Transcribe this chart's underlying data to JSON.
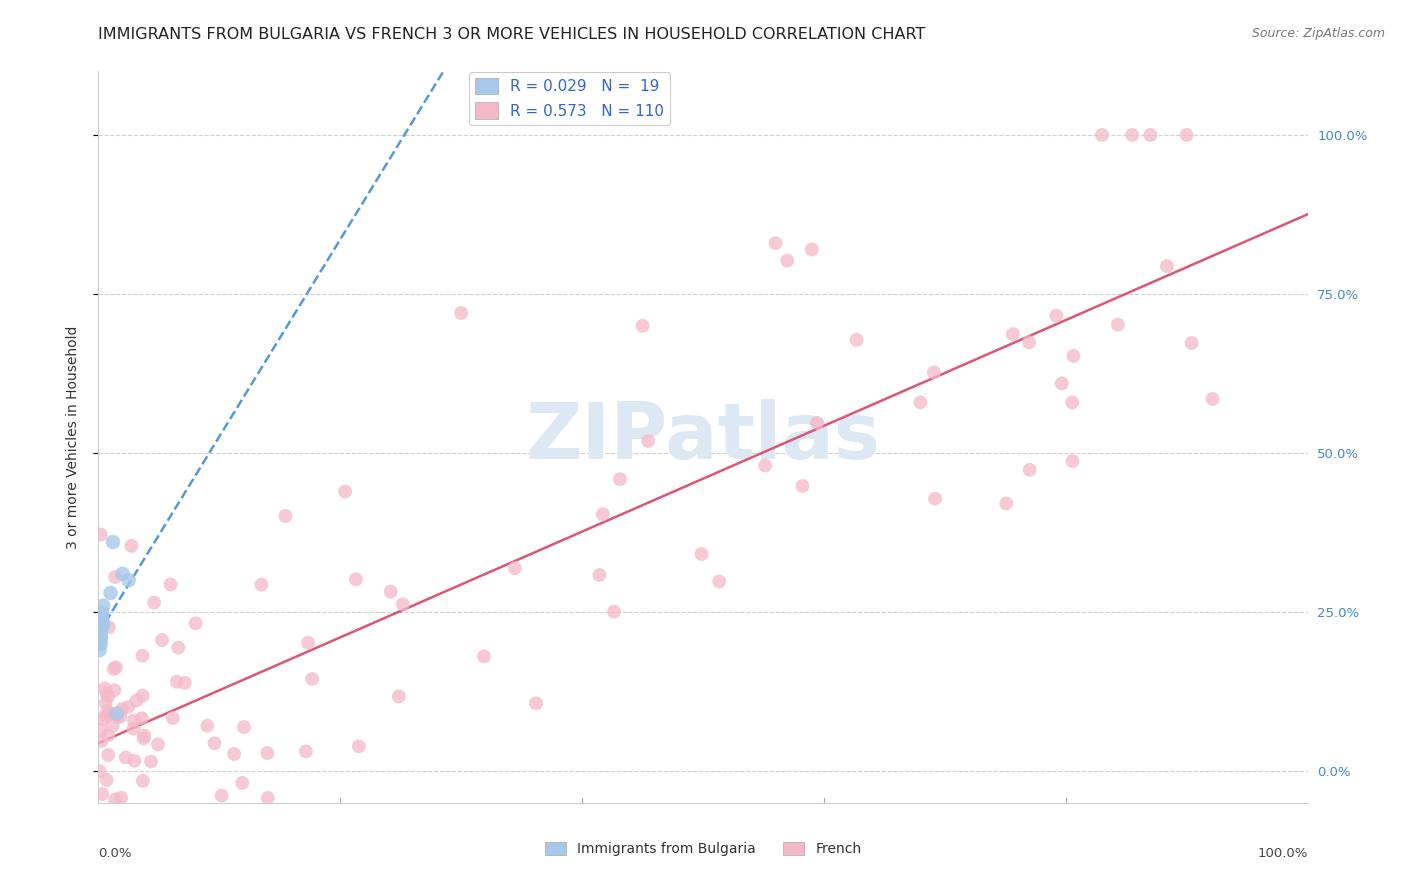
{
  "title": "IMMIGRANTS FROM BULGARIA VS FRENCH 3 OR MORE VEHICLES IN HOUSEHOLD CORRELATION CHART",
  "source": "Source: ZipAtlas.com",
  "ylabel": "3 or more Vehicles in Household",
  "xlim": [
    0,
    1
  ],
  "ylim": [
    -0.05,
    1.1
  ],
  "ytick_labels": [
    "0.0%",
    "25.0%",
    "50.0%",
    "75.0%",
    "100.0%"
  ],
  "ytick_values": [
    0.0,
    0.25,
    0.5,
    0.75,
    1.0
  ],
  "bottom_legend": [
    "Immigrants from Bulgaria",
    "French"
  ],
  "bg_color": "#ffffff",
  "grid_color": "#d0d0d0",
  "watermark_text": "ZIPatlas",
  "watermark_color": "#dde8f5",
  "bulgaria_color_fill": "#a8c8ea",
  "french_color_fill": "#f5b8c8",
  "regression_blue_color": "#5599dd",
  "regression_pink_color": "#dd5577",
  "title_fontsize": 11.5,
  "axis_label_fontsize": 10,
  "tick_fontsize": 9.5,
  "source_fontsize": 9,
  "right_ytick_color": "#4488cc",
  "legend_text_color": "#3366cc",
  "legend_fontsize": 11,
  "legend_label1": "R = 0.029   N =  19",
  "legend_label2": "R = 0.573   N = 110"
}
